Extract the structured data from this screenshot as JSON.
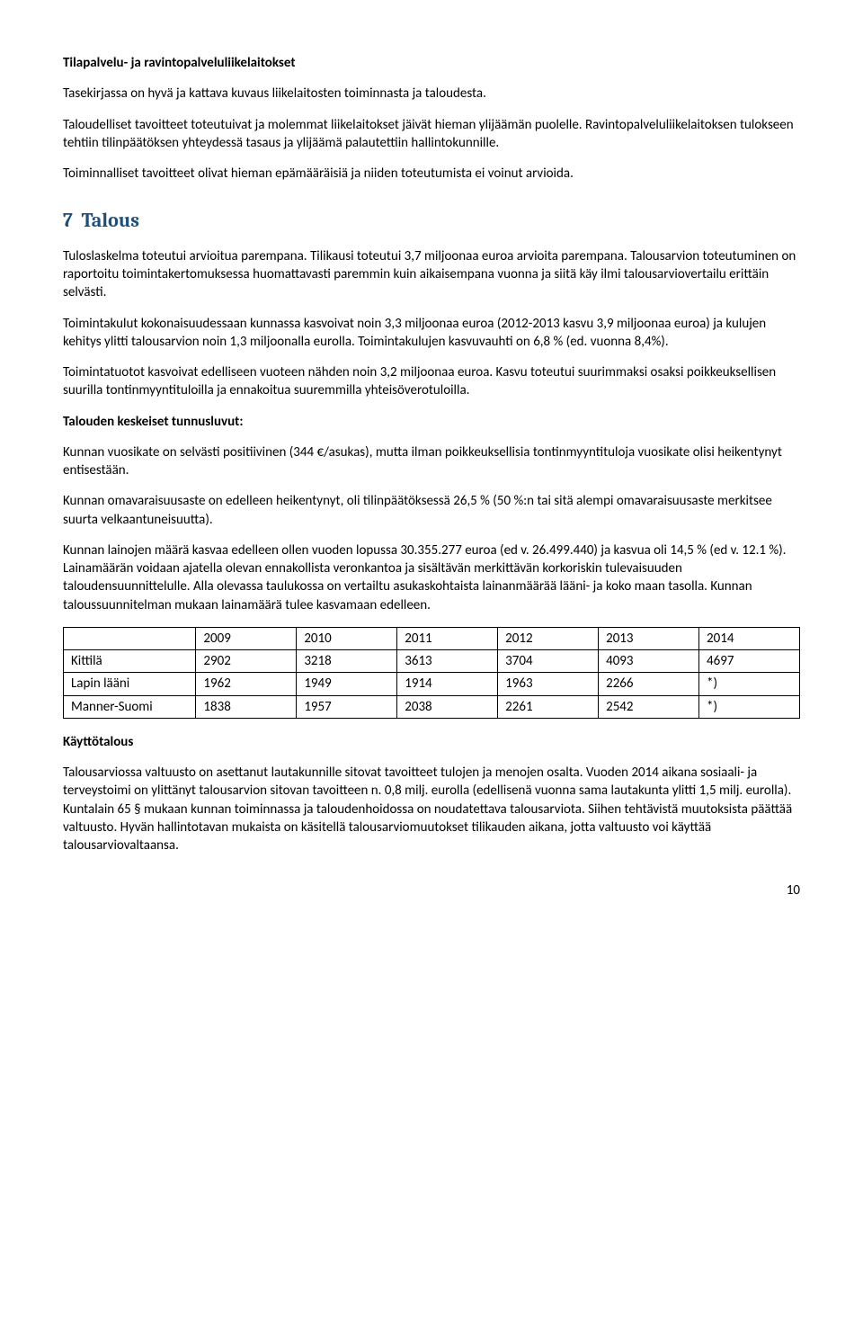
{
  "heading1": "Tilapalvelu- ja ravintopalveluliikelaitokset",
  "p1": "Tasekirjassa on hyvä ja kattava kuvaus liikelaitosten toiminnasta ja taloudesta.",
  "p2": "Taloudelliset tavoitteet toteutuivat ja molemmat liikelaitokset jäivät hieman ylijäämän puolelle. Ravintopalveluliikelaitoksen tulokseen tehtiin tilinpäätöksen yhteydessä tasaus ja ylijäämä palautettiin hallintokunnille.",
  "p3": "Toiminnalliset tavoitteet olivat hieman epämääräisiä ja niiden toteutumista ei voinut arvioida.",
  "section_number": "7",
  "section_title": "Talous",
  "p4": "Tuloslaskelma toteutui arvioitua parempana. Tilikausi toteutui 3,7 miljoonaa euroa arvioita parempana. Talousarvion toteutuminen on raportoitu toimintakertomuksessa huomattavasti paremmin kuin aikaisempana vuonna ja siitä käy ilmi talousarviovertailu erittäin selvästi.",
  "p5": "Toimintakulut kokonaisuudessaan kunnassa kasvoivat noin 3,3 miljoonaa euroa (2012-2013 kasvu 3,9 miljoonaa euroa) ja kulujen kehitys ylitti talousarvion noin 1,3 miljoonalla eurolla. Toimintakulujen kasvuvauhti on 6,8 % (ed. vuonna 8,4%).",
  "p6": "Toimintatuotot kasvoivat edelliseen vuoteen nähden noin 3,2 miljoonaa euroa. Kasvu toteutui suurimmaksi osaksi poikkeuksellisen suurilla tontinmyyntituloilla ja ennakoitua suuremmilla yhteisöverotuloilla.",
  "heading2": "Talouden keskeiset tunnusluvut:",
  "p7": "Kunnan vuosikate on selvästi positiivinen (344 €/asukas), mutta ilman poikkeuksellisia tontinmyyntituloja vuosikate olisi heikentynyt entisestään.",
  "p8": "Kunnan omavaraisuusaste on edelleen heikentynyt, oli tilinpäätöksessä 26,5 % (50 %:n tai sitä alempi omavaraisuusaste merkitsee suurta velkaantuneisuutta).",
  "p9": "Kunnan lainojen määrä kasvaa edelleen ollen vuoden lopussa 30.355.277 euroa (ed v. 26.499.440) ja kasvua oli 14,5 % (ed v. 12.1 %). Lainamäärän voidaan ajatella olevan ennakollista veronkantoa ja sisältävän merkittävän korkoriskin tulevaisuuden taloudensuunnittelulle. Alla olevassa taulukossa on vertailtu asukaskohtaista lainanmäärää lääni- ja koko maan tasolla. Kunnan taloussuunnitelman mukaan lainamäärä tulee kasvamaan edelleen.",
  "table": {
    "headers": [
      "",
      "2009",
      "2010",
      "2011",
      "2012",
      "2013",
      "2014"
    ],
    "rows": [
      [
        "Kittilä",
        "2902",
        "3218",
        "3613",
        "3704",
        "4093",
        "4697"
      ],
      [
        "Lapin lääni",
        "1962",
        "1949",
        "1914",
        "1963",
        "2266",
        "*)"
      ],
      [
        "Manner-Suomi",
        "1838",
        "1957",
        "2038",
        "2261",
        "2542",
        "*)"
      ]
    ]
  },
  "heading3": "Käyttötalous",
  "p10": "Talousarviossa valtuusto on asettanut lautakunnille sitovat tavoitteet tulojen ja menojen osalta. Vuoden 2014 aikana sosiaali- ja terveystoimi on ylittänyt talousarvion sitovan tavoitteen n. 0,8 milj. eurolla (edellisenä vuonna sama lautakunta ylitti 1,5 milj. eurolla). Kuntalain 65 § mukaan kunnan toiminnassa ja taloudenhoidossa on noudatettava talousarviota. Siihen tehtävistä muutoksista päättää valtuusto. Hyvän hallintotavan mukaista on käsitellä talousarviomuutokset tilikauden aikana, jotta valtuusto voi käyttää talousarviovaltaansa.",
  "page_number": "10"
}
